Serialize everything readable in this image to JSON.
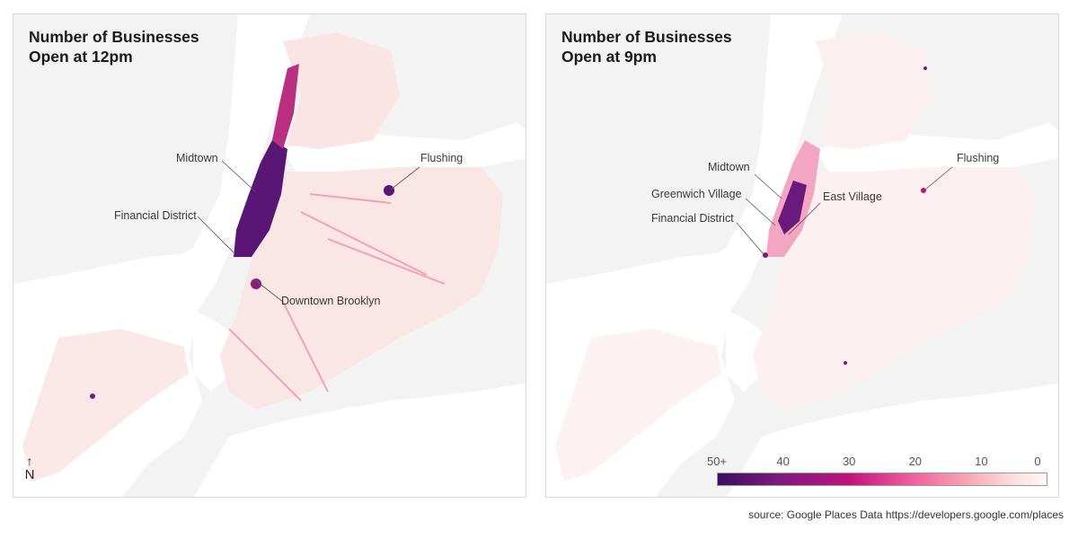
{
  "panels": [
    {
      "title_line1": "Number of Businesses",
      "title_line2": "Open at 12pm",
      "labels": [
        "Midtown",
        "Financial District",
        "Flushing",
        "Downtown Brooklyn"
      ]
    },
    {
      "title_line1": "Number of Businesses",
      "title_line2": "Open at 9pm",
      "labels": [
        "Midtown",
        "Greenwich Village",
        "East Village",
        "Financial District",
        "Flushing"
      ]
    }
  ],
  "north": {
    "arrow": "↑",
    "letter": "N"
  },
  "legend": {
    "ticks": [
      "50+",
      "40",
      "30",
      "20",
      "10",
      "0"
    ],
    "colors": [
      "#3b0f5e",
      "#7b1a7e",
      "#c0127f",
      "#ee5a9a",
      "#f9b0b8",
      "#fff8f4"
    ]
  },
  "source": "source: Google Places Data https://developers.google.com/places",
  "colors": {
    "land": "#f3f3f3",
    "water": "#ffffff",
    "low": "#f9c9c9",
    "high": "#3b0f5e"
  }
}
